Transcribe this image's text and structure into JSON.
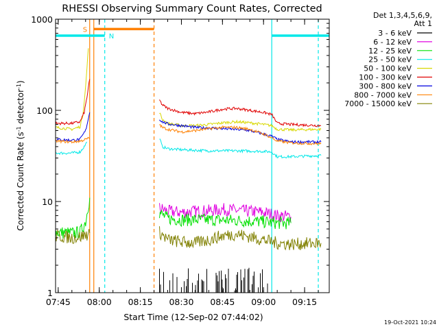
{
  "title": "RHESSI Observing Summary Count Rates, Corrected",
  "footer_date": "19-Oct-2021 10:24",
  "chart_data": {
    "type": "line",
    "title": "RHESSI Observing Summary Count Rates, Corrected",
    "xlabel": "Start Time (12-Sep-02 07:44:02)",
    "ylabel": "Corrected Count Rate (s⁻¹ detector⁻¹)",
    "ylabel_parts": [
      "Corrected Count Rate (s",
      "-1",
      " detector",
      "-1",
      ")"
    ],
    "yscale": "log",
    "xlim": [
      "07:44:02",
      "09:24:00"
    ],
    "ylim": [
      1,
      1000
    ],
    "x_ticks": [
      "07:45",
      "08:00",
      "08:15",
      "08:30",
      "08:45",
      "09:00",
      "09:15"
    ],
    "y_ticks": [
      {
        "value": 1,
        "label": "1"
      },
      {
        "value": 10,
        "label": "10"
      },
      {
        "value": 100,
        "label": "100"
      },
      {
        "value": 1000,
        "label": "1000"
      }
    ],
    "legend": {
      "position": "right",
      "header": [
        "Det 1,3,4,5,6,9,",
        "Att 1"
      ],
      "entries": [
        {
          "label": "3 - 6 keV",
          "color": "#000000"
        },
        {
          "label": "6 - 12 keV",
          "color": "#e000e0"
        },
        {
          "label": "12 - 25 keV",
          "color": "#00e000"
        },
        {
          "label": "25 - 50 keV",
          "color": "#00e8e8"
        },
        {
          "label": "50 - 100 keV",
          "color": "#d8d800"
        },
        {
          "label": "100 - 300 keV",
          "color": "#e00000"
        },
        {
          "label": "300 - 800 keV",
          "color": "#0000e0"
        },
        {
          "label": "800 - 7000 keV",
          "color": "#ff8000"
        },
        {
          "label": "7000 - 15000 keV",
          "color": "#808000"
        }
      ]
    },
    "annotations": {
      "saa": {
        "label": "S",
        "start": "07:56:00",
        "end": "08:20:00",
        "color": "#ff8000",
        "level": 780
      },
      "night": [
        {
          "label": "N",
          "start": "07:44:02",
          "end": "08:02:00",
          "color": "#00e8e8",
          "level": 660
        },
        {
          "label": "",
          "start": "09:03:00",
          "end": "09:24:00",
          "color": "#00e8e8",
          "level": 660
        }
      ],
      "vlines": [
        {
          "time": "07:56:30",
          "color": "#ff8000",
          "style": "solid"
        },
        {
          "time": "07:58:00",
          "color": "#ff8000",
          "style": "solid"
        },
        {
          "time": "08:02:00",
          "color": "#00e8e8",
          "style": "dashed"
        },
        {
          "time": "08:20:00",
          "color": "#ff8000",
          "style": "dashed"
        },
        {
          "time": "09:03:00",
          "color": "#00e8e8",
          "style": "solid"
        },
        {
          "time": "09:20:00",
          "color": "#00e8e8",
          "style": "dashed"
        }
      ]
    },
    "series": [
      {
        "name": "3 - 6 keV",
        "color": "#000000",
        "style": "spikes",
        "segments": [
          [
            [
              "08:22",
              "1.5"
            ],
            [
              "08:35",
              "1.7"
            ],
            [
              "08:48",
              "1.8"
            ],
            [
              "09:02",
              "1.6"
            ]
          ]
        ]
      },
      {
        "name": "6 - 12 keV",
        "color": "#e000e0",
        "segments": [
          [
            [
              "08:22:00",
              8.5
            ],
            [
              "08:25:00",
              7.8
            ],
            [
              "08:30:00",
              7.6
            ],
            [
              "08:35:00",
              7.8
            ],
            [
              "08:40:00",
              7.9
            ],
            [
              "08:45:00",
              8.2
            ],
            [
              "08:50:00",
              8.0
            ],
            [
              "08:55:00",
              7.8
            ],
            [
              "09:00:00",
              7.6
            ],
            [
              "09:05:00",
              7.0
            ],
            [
              "09:10:00",
              6.8
            ]
          ]
        ]
      },
      {
        "name": "12 - 25 keV",
        "color": "#00e000",
        "segments": [
          [
            [
              "07:44:02",
              4.6
            ],
            [
              "07:50:00",
              4.5
            ],
            [
              "07:53:00",
              4.6
            ],
            [
              "07:55:00",
              6.0
            ],
            [
              "07:56:00",
              9.0
            ],
            [
              "07:56:30",
              11.0
            ]
          ],
          [
            [
              "08:22:00",
              7.5
            ],
            [
              "08:25:00",
              6.5
            ],
            [
              "08:30:00",
              6.3
            ],
            [
              "08:40:00",
              6.3
            ],
            [
              "08:50:00",
              6.2
            ],
            [
              "09:00:00",
              6.0
            ],
            [
              "09:05:00",
              5.8
            ],
            [
              "09:10:00",
              5.8
            ]
          ]
        ]
      },
      {
        "name": "25 - 50 keV",
        "color": "#00e8e8",
        "segments": [
          [
            [
              "07:44:02",
              34
            ],
            [
              "07:50:00",
              34
            ],
            [
              "07:53:00",
              35
            ],
            [
              "07:54:30",
              40
            ],
            [
              "07:55:30",
              45
            ]
          ],
          [
            [
              "08:22:00",
              50
            ],
            [
              "08:23:00",
              40
            ],
            [
              "08:25:00",
              38
            ],
            [
              "08:30:00",
              37
            ],
            [
              "08:40:00",
              36
            ],
            [
              "08:50:00",
              36
            ],
            [
              "09:00:00",
              35.5
            ],
            [
              "09:03:00",
              35
            ],
            [
              "09:05:00",
              31
            ],
            [
              "09:10:00",
              31
            ],
            [
              "09:21:00",
              32
            ]
          ]
        ]
      },
      {
        "name": "50 - 100 keV",
        "color": "#d8d800",
        "segments": [
          [
            [
              "07:44:02",
              65
            ],
            [
              "07:50:00",
              62
            ],
            [
              "07:53:00",
              66
            ],
            [
              "07:54:00",
              90
            ],
            [
              "07:55:00",
              180
            ],
            [
              "07:56:00",
              480
            ]
          ],
          [
            [
              "08:22:00",
              95
            ],
            [
              "08:23:00",
              80
            ],
            [
              "08:25:00",
              72
            ],
            [
              "08:30:00",
              68
            ],
            [
              "08:35:00",
              68
            ],
            [
              "08:40:00",
              70
            ],
            [
              "08:45:00",
              73
            ],
            [
              "08:50:00",
              75
            ],
            [
              "08:55:00",
              73
            ],
            [
              "09:00:00",
              70
            ],
            [
              "09:03:00",
              68
            ],
            [
              "09:05:00",
              62
            ],
            [
              "09:10:00",
              61
            ],
            [
              "09:21:00",
              62
            ]
          ]
        ]
      },
      {
        "name": "100 - 300 keV",
        "color": "#e00000",
        "segments": [
          [
            [
              "07:44:02",
              72
            ],
            [
              "07:50:00",
              72
            ],
            [
              "07:53:00",
              75
            ],
            [
              "07:54:30",
              95
            ],
            [
              "07:55:30",
              140
            ],
            [
              "07:56:30",
              220
            ]
          ],
          [
            [
              "08:22:00",
              130
            ],
            [
              "08:23:00",
              115
            ],
            [
              "08:25:00",
              105
            ],
            [
              "08:30:00",
              95
            ],
            [
              "08:35:00",
              92
            ],
            [
              "08:40:00",
              96
            ],
            [
              "08:45:00",
              103
            ],
            [
              "08:50:00",
              105
            ],
            [
              "08:55:00",
              100
            ],
            [
              "09:00:00",
              95
            ],
            [
              "09:03:00",
              90
            ],
            [
              "09:05:00",
              72
            ],
            [
              "09:10:00",
              70
            ],
            [
              "09:21:00",
              68
            ]
          ]
        ]
      },
      {
        "name": "300 - 800 keV",
        "color": "#0000e0",
        "segments": [
          [
            [
              "07:44:02",
              48
            ],
            [
              "07:50:00",
              47
            ],
            [
              "07:53:00",
              48
            ],
            [
              "07:55:00",
              60
            ],
            [
              "07:56:30",
              95
            ]
          ],
          [
            [
              "08:22:00",
              80
            ],
            [
              "08:23:00",
              75
            ],
            [
              "08:25:00",
              71
            ],
            [
              "08:30:00",
              68
            ],
            [
              "08:35:00",
              65
            ],
            [
              "08:40:00",
              64
            ],
            [
              "08:45:00",
              63
            ],
            [
              "08:50:00",
              62
            ],
            [
              "08:55:00",
              60
            ],
            [
              "09:00:00",
              55
            ],
            [
              "09:03:00",
              52
            ],
            [
              "09:05:00",
              48
            ],
            [
              "09:10:00",
              45
            ],
            [
              "09:21:00",
              45
            ]
          ]
        ]
      },
      {
        "name": "800 - 7000 keV",
        "color": "#ff8000",
        "segments": [
          [
            [
              "07:44:02",
              46
            ],
            [
              "07:50:00",
              45
            ],
            [
              "07:53:00",
              46
            ],
            [
              "07:55:00",
              48
            ],
            [
              "07:56:30",
              50
            ]
          ],
          [
            [
              "08:22:00",
              70
            ],
            [
              "08:23:00",
              65
            ],
            [
              "08:25:00",
              62
            ],
            [
              "08:30:00",
              58
            ],
            [
              "08:35:00",
              60
            ],
            [
              "08:40:00",
              63
            ],
            [
              "08:45:00",
              65
            ],
            [
              "08:50:00",
              65
            ],
            [
              "08:55:00",
              62
            ],
            [
              "09:00:00",
              55
            ],
            [
              "09:03:00",
              50
            ],
            [
              "09:05:00",
              46
            ],
            [
              "09:10:00",
              44
            ],
            [
              "09:21:00",
              43
            ]
          ]
        ]
      },
      {
        "name": "7000 - 15000 keV",
        "color": "#808000",
        "segments": [
          [
            [
              "07:44:02",
              4.2
            ],
            [
              "07:50:00",
              4.0
            ],
            [
              "07:53:00",
              4.1
            ],
            [
              "07:55:00",
              4.3
            ],
            [
              "07:56:30",
              4.5
            ]
          ],
          [
            [
              "08:22:00",
              4.6
            ],
            [
              "08:25:00",
              3.8
            ],
            [
              "08:30:00",
              3.6
            ],
            [
              "08:35:00",
              3.5
            ],
            [
              "08:40:00",
              3.8
            ],
            [
              "08:45:00",
              4.2
            ],
            [
              "08:50:00",
              4.4
            ],
            [
              "08:55:00",
              4.1
            ],
            [
              "09:00:00",
              3.8
            ],
            [
              "09:05:00",
              3.5
            ],
            [
              "09:10:00",
              3.4
            ],
            [
              "09:21:00",
              3.5
            ]
          ]
        ]
      }
    ]
  }
}
